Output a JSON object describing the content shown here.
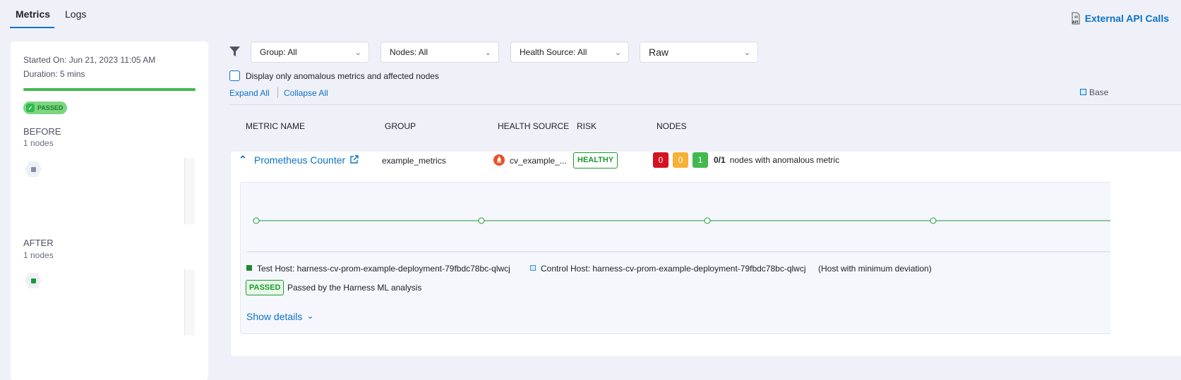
{
  "tabs": [
    {
      "label": "Metrics",
      "active": true
    },
    {
      "label": "Logs",
      "active": false
    }
  ],
  "external_api": {
    "label": "External API Calls",
    "icon": "api-document-icon"
  },
  "summary": {
    "started_on": "Started On: Jun 21, 2023 11:05 AM",
    "duration": "Duration: 5 mins",
    "progress_percent": 100,
    "status": "PASSED",
    "before": {
      "title": "BEFORE",
      "nodes": "1 nodes"
    },
    "after": {
      "title": "AFTER",
      "nodes": "1 nodes"
    }
  },
  "filters": {
    "group": "Group: All",
    "nodes": "Nodes: All",
    "health_source": "Health Source: All",
    "view": "Raw",
    "anomalous_checkbox": "Display only anomalous metrics and affected nodes",
    "anomalous_checked": false,
    "expand_all": "Expand All",
    "collapse_all": "Collapse All",
    "legend_baseline": "Base"
  },
  "table": {
    "headers": [
      "METRIC NAME",
      "GROUP",
      "HEALTH SOURCE",
      "RISK",
      "NODES"
    ],
    "row": {
      "metric": "Prometheus Counter",
      "group": "example_metrics",
      "health_source": "cv_example_...",
      "risk": "HEALTHY",
      "counts": [
        {
          "value": "0",
          "color": "#d3131f"
        },
        {
          "value": "0",
          "color": "#f8b135"
        },
        {
          "value": "1",
          "color": "#42b94e"
        }
      ],
      "ratio": "0/1",
      "ratio_text": "nodes with anomalous metric"
    },
    "details": {
      "test_host": "Test Host: harness-cv-prom-example-deployment-79fbdc78bc-qlwcj",
      "control_host": "Control Host: harness-cv-prom-example-deployment-79fbdc78bc-qlwcj",
      "control_note": "(Host with minimum deviation)",
      "status": "PASSED",
      "status_text": "Passed by the Harness ML analysis",
      "show_details": "Show details"
    }
  },
  "colors": {
    "accent": "#0b72c9",
    "healthy": "#1b9a2e",
    "line": "#1b9a2e"
  }
}
